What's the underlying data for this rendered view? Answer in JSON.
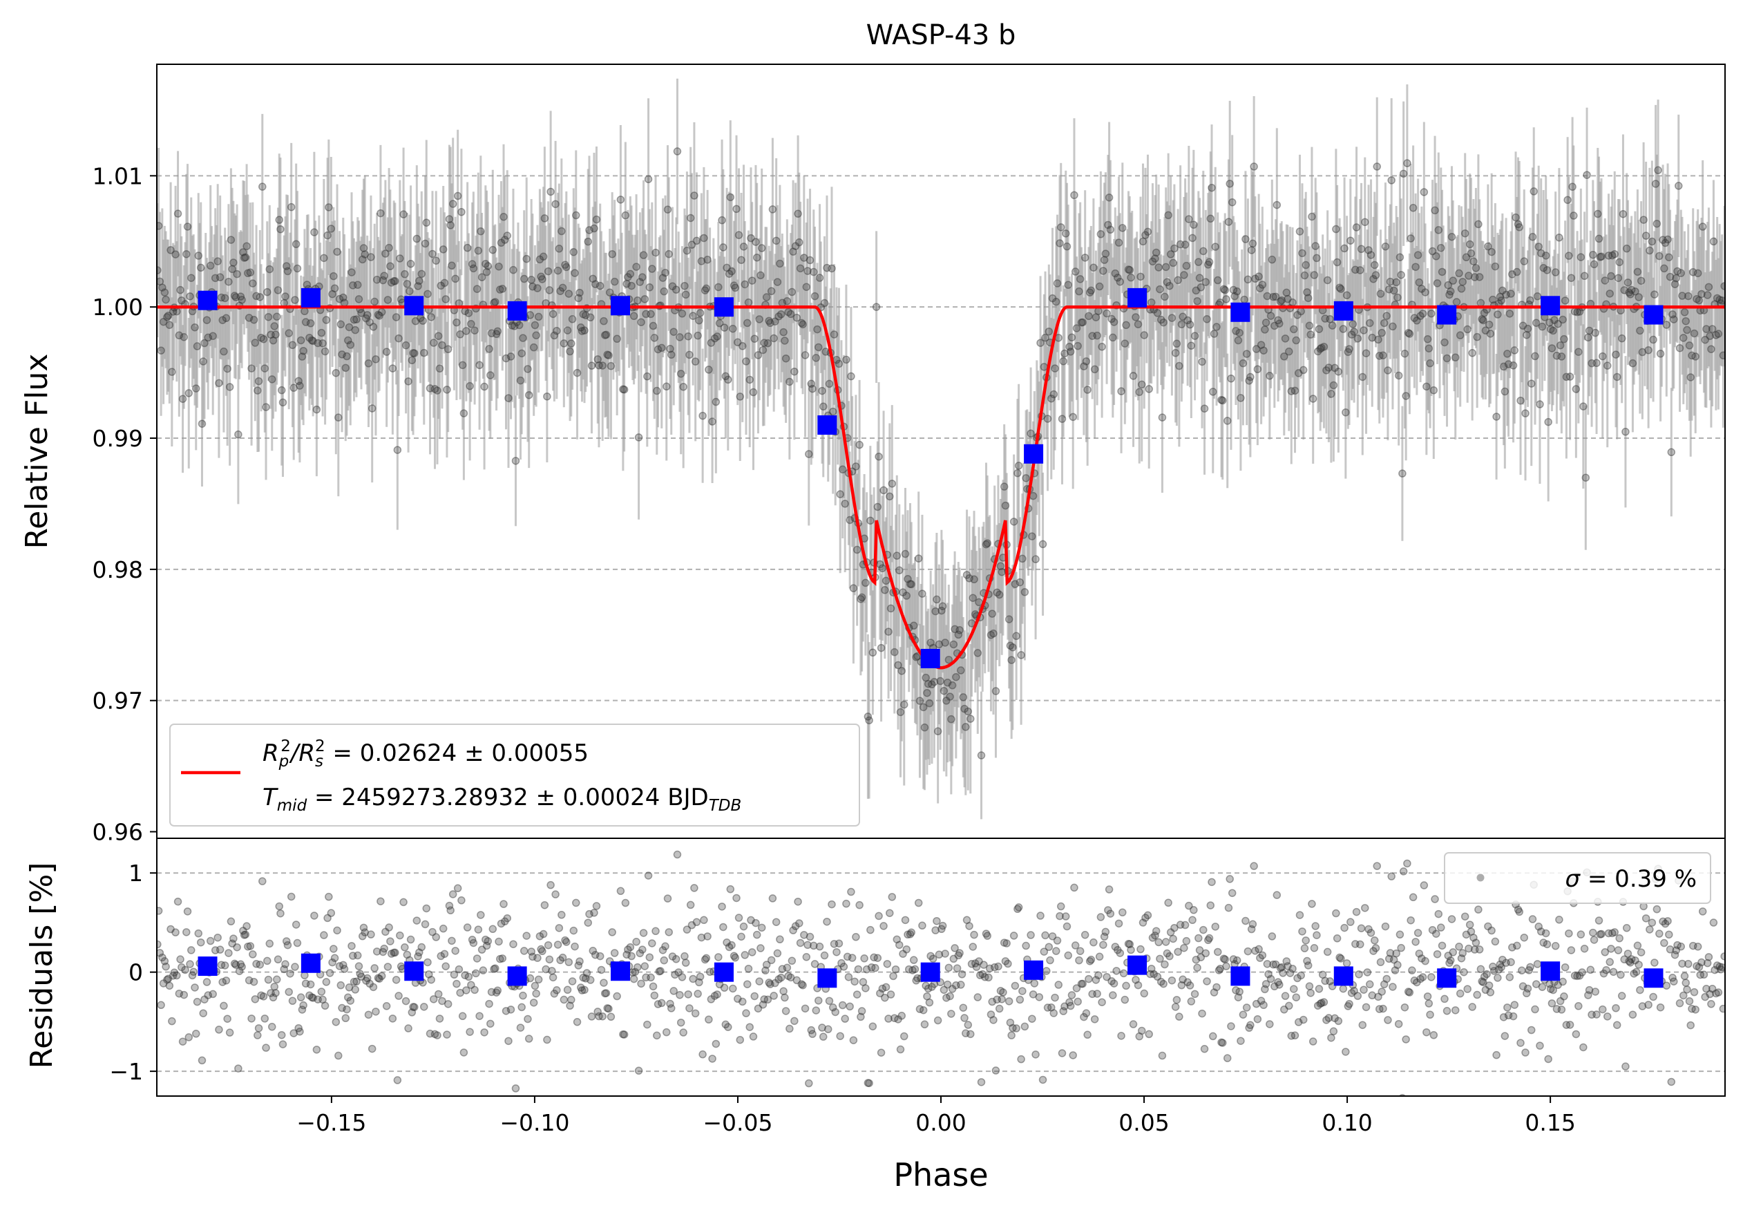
{
  "colors": {
    "points": "#333333",
    "errorbars": "#999999",
    "binned": "#0000ff",
    "model": "#ff0000",
    "grid": "#b0b0b0"
  },
  "chart_data": [
    {
      "type": "scatter",
      "panel": "light-curve",
      "title": "WASP-43 b",
      "xlabel": "",
      "ylabel": "Relative Flux",
      "xlim": [
        -0.193,
        0.193
      ],
      "ylim": [
        0.9595,
        1.0185
      ],
      "yticks": [
        0.96,
        0.97,
        0.98,
        0.99,
        1.0,
        1.01
      ],
      "ytick_labels": [
        "0.96",
        "0.97",
        "0.98",
        "0.99",
        "1.00",
        "1.01"
      ],
      "grid": "horizontal dashed",
      "model": {
        "name": "transit model",
        "depth": 0.02624,
        "t1": 0.031,
        "t2": 0.016,
        "min_flux": 0.9725
      },
      "raw": {
        "n_points": 1300,
        "flux_scatter": 0.0039,
        "errorbar": 0.0055,
        "seed": 43
      },
      "binned": {
        "x": [
          -0.1805,
          -0.1551,
          -0.1297,
          -0.1043,
          -0.0789,
          -0.0534,
          -0.028,
          -0.0026,
          0.0228,
          0.0483,
          0.0737,
          0.0991,
          0.1245,
          0.15,
          0.1754
        ],
        "y": [
          1.0005,
          1.0007,
          1.0001,
          0.9997,
          1.0001,
          1.0,
          0.991,
          0.9732,
          0.9888,
          1.0007,
          0.9996,
          0.9997,
          0.9994,
          1.0001,
          0.9994
        ]
      },
      "legend": {
        "location": "lower-left",
        "line1_prefix": "R",
        "line1_sub1": "p",
        "line1_sup": "2",
        "line1_sep": "/R",
        "line1_sub2": "s",
        "line1_sup2": "2",
        "line1_value": " = 0.02624 ± 0.00055",
        "line2_prefix": "T",
        "line2_sub": "mid",
        "line2_value": " = 2459273.28932 ± 0.00024 BJD",
        "line2_unit_sub": "TDB"
      }
    },
    {
      "type": "scatter",
      "panel": "residuals",
      "xlabel": "Phase",
      "ylabel": "Residuals [%]",
      "xlim": [
        -0.193,
        0.193
      ],
      "ylim": [
        -1.25,
        1.35
      ],
      "yticks": [
        -1,
        0,
        1
      ],
      "ytick_labels": [
        "−1",
        "0",
        "1"
      ],
      "xticks": [
        -0.15,
        -0.1,
        -0.05,
        0.0,
        0.05,
        0.1,
        0.15
      ],
      "xtick_labels": [
        "−0.15",
        "−0.10",
        "−0.05",
        "0.00",
        "0.05",
        "0.10",
        "0.15"
      ],
      "grid": "horizontal dashed",
      "binned": {
        "x": [
          -0.1805,
          -0.1551,
          -0.1297,
          -0.1043,
          -0.0789,
          -0.0534,
          -0.028,
          -0.0026,
          0.0228,
          0.0483,
          0.0737,
          0.0991,
          0.1245,
          0.15,
          0.1754
        ],
        "y": [
          0.06,
          0.09,
          0.01,
          -0.04,
          0.01,
          0.0,
          -0.06,
          0.0,
          0.02,
          0.07,
          -0.04,
          -0.04,
          -0.06,
          0.01,
          -0.06
        ]
      },
      "legend": {
        "location": "top-right",
        "symbol": "σ",
        "text": " = 0.39 %"
      }
    }
  ]
}
